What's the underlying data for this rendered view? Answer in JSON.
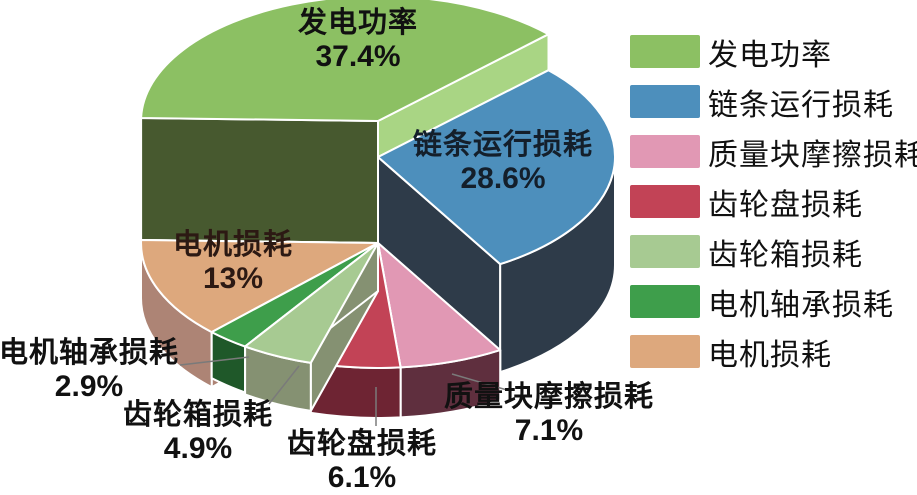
{
  "chart_data": {
    "type": "pie",
    "style": "3d-exploded-pie",
    "unit": "%",
    "legend_position": "right",
    "background": "#ffffff",
    "slices": [
      {
        "label": "发电功率",
        "value": 37.4,
        "pct_label": "37.4%",
        "color": "#8CC063",
        "side_color": "#47592F"
      },
      {
        "label": "链条运行损耗",
        "value": 28.6,
        "pct_label": "28.6%",
        "color": "#4D8FBC",
        "side_color": "#2E3B49"
      },
      {
        "label": "质量块摩擦损耗",
        "value": 7.1,
        "pct_label": "7.1%",
        "color": "#E198B4",
        "side_color": "#5F2F3E"
      },
      {
        "label": "齿轮盘损耗",
        "value": 6.1,
        "pct_label": "6.1%",
        "color": "#C24356",
        "side_color": "#6E2433"
      },
      {
        "label": "齿轮箱损耗",
        "value": 4.9,
        "pct_label": "4.9%",
        "color": "#A7CA92",
        "side_color": "#859172"
      },
      {
        "label": "电机轴承损耗",
        "value": 2.9,
        "pct_label": "2.9%",
        "color": "#3E9E4B",
        "side_color": "#1F5829"
      },
      {
        "label": "电机损耗",
        "value": 13,
        "pct_label": "13%",
        "color": "#DDA87D",
        "side_color": "#AD8475"
      }
    ],
    "green_exploded_faces": {
      "left_face": "#47592F",
      "right_face": "#A9D584"
    },
    "leader_line_color": "#7a7a7a",
    "stroke_color": "#ffffff"
  }
}
